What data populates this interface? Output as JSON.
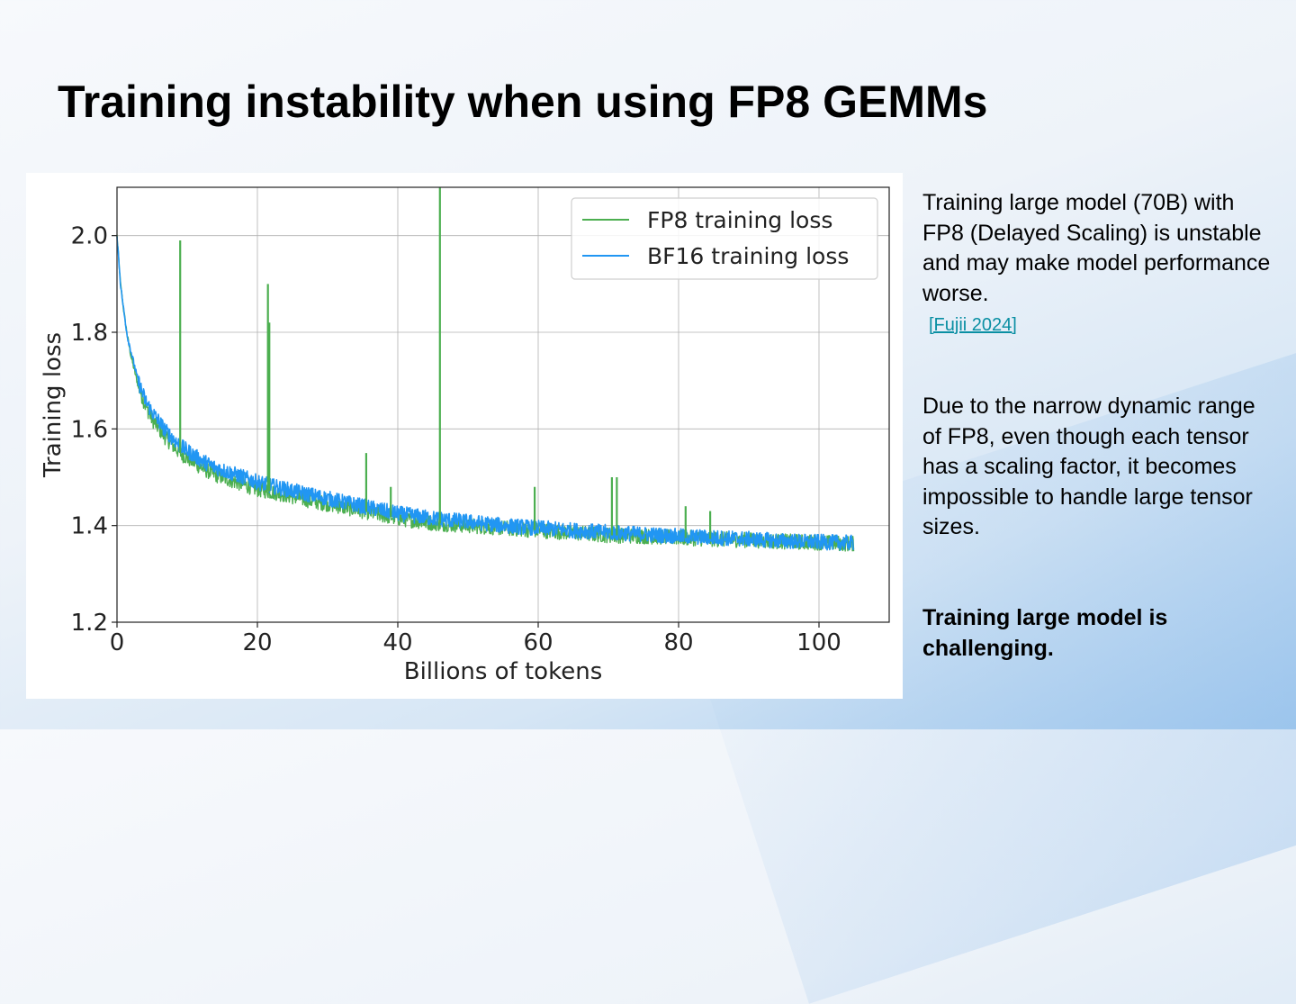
{
  "slide": {
    "title": "Training instability when using FP8 GEMMs",
    "paragraph1": "Training large model (70B) with FP8 (Delayed Scaling) is unstable and may make model performance worse.",
    "reference_link": "[Fujii 2024]",
    "paragraph2": "Due to the narrow dynamic range of FP8, even though each tensor has a scaling factor, it becomes impossible to handle large tensor sizes.",
    "conclusion": "Training large model is challenging."
  },
  "colors": {
    "fp8": "#4caf50",
    "bf16": "#2196f3",
    "link": "#0a8fa3"
  },
  "chart_data": {
    "type": "line",
    "title": "",
    "xlabel": "Billions of tokens",
    "ylabel": "Training loss",
    "xlim": [
      0,
      110
    ],
    "ylim": [
      1.2,
      2.1
    ],
    "xticks": [
      0,
      20,
      40,
      60,
      80,
      100
    ],
    "yticks": [
      1.2,
      1.4,
      1.6,
      1.8,
      2.0
    ],
    "xtick_labels": [
      "0",
      "20",
      "40",
      "60",
      "80",
      "100"
    ],
    "ytick_labels": [
      "1.2",
      "1.4",
      "1.6",
      "1.8",
      "2.0"
    ],
    "grid": true,
    "legend_position": "top-right",
    "series": [
      {
        "name": "FP8 training loss",
        "color": "#4caf50",
        "x": [
          0,
          0.5,
          1,
          1.5,
          2,
          3,
          4,
          5,
          6,
          7,
          8,
          9,
          10,
          12,
          14,
          16,
          18,
          20,
          22,
          25,
          28,
          30,
          35,
          40,
          45,
          50,
          55,
          60,
          65,
          70,
          75,
          80,
          85,
          90,
          95,
          100,
          105
        ],
        "y": [
          2.0,
          1.9,
          1.84,
          1.79,
          1.75,
          1.69,
          1.65,
          1.62,
          1.6,
          1.58,
          1.565,
          1.55,
          1.54,
          1.52,
          1.505,
          1.495,
          1.485,
          1.475,
          1.47,
          1.46,
          1.45,
          1.445,
          1.43,
          1.415,
          1.405,
          1.4,
          1.395,
          1.39,
          1.385,
          1.38,
          1.378,
          1.375,
          1.372,
          1.37,
          1.367,
          1.365,
          1.362
        ],
        "spikes": [
          {
            "x": 9,
            "y": 1.99
          },
          {
            "x": 21.5,
            "y": 1.9
          },
          {
            "x": 21.7,
            "y": 1.82
          },
          {
            "x": 35.5,
            "y": 1.55
          },
          {
            "x": 39,
            "y": 1.48
          },
          {
            "x": 46,
            "y": 2.1
          },
          {
            "x": 59.5,
            "y": 1.48
          },
          {
            "x": 70.5,
            "y": 1.5
          },
          {
            "x": 71.2,
            "y": 1.5
          },
          {
            "x": 81,
            "y": 1.44
          },
          {
            "x": 84.5,
            "y": 1.43
          }
        ]
      },
      {
        "name": "BF16 training loss",
        "color": "#2196f3",
        "x": [
          0,
          0.5,
          1,
          1.5,
          2,
          3,
          4,
          5,
          6,
          7,
          8,
          9,
          10,
          12,
          14,
          16,
          18,
          20,
          22,
          25,
          28,
          30,
          35,
          40,
          45,
          50,
          55,
          60,
          65,
          70,
          75,
          80,
          85,
          90,
          95,
          100,
          105
        ],
        "y": [
          2.0,
          1.9,
          1.84,
          1.79,
          1.76,
          1.7,
          1.66,
          1.635,
          1.615,
          1.595,
          1.58,
          1.565,
          1.555,
          1.535,
          1.52,
          1.51,
          1.5,
          1.49,
          1.482,
          1.472,
          1.462,
          1.456,
          1.44,
          1.425,
          1.415,
          1.408,
          1.4,
          1.395,
          1.39,
          1.386,
          1.382,
          1.378,
          1.375,
          1.372,
          1.368,
          1.366,
          1.364
        ]
      }
    ]
  }
}
